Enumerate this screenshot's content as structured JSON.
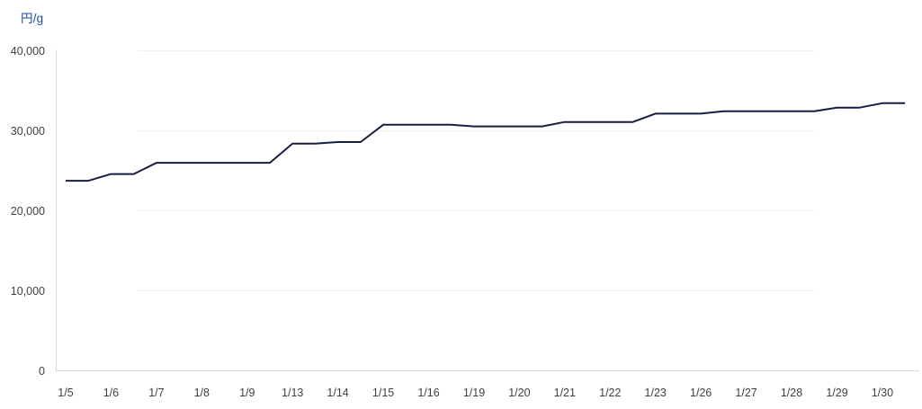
{
  "page": {
    "background": "#ffffff"
  },
  "chart": {
    "unit_label": "円/g",
    "colors": {
      "line": "#171e40",
      "unit_label_text": "#1b4aa2",
      "axis_text": "#404040",
      "axis_line": "#d9d9d9",
      "gridline": "#ededed"
    }
  },
  "chart_data": {
    "type": "line",
    "title": "",
    "xlabel": "",
    "ylabel": "円/g",
    "legend": "none",
    "grid": "horizontal-only",
    "ylim": [
      0,
      40000
    ],
    "ytick_values": [
      0,
      10000,
      20000,
      30000,
      40000
    ],
    "ytick_labels": [
      "0",
      "10,000",
      "20,000",
      "30,000",
      "40,000"
    ],
    "x_labels": [
      "1/5",
      "1/6",
      "1/7",
      "1/8",
      "1/9",
      "1/13",
      "1/14",
      "1/15",
      "1/16",
      "1/19",
      "1/20",
      "1/21",
      "1/22",
      "1/23",
      "1/26",
      "1/27",
      "1/28",
      "1/29",
      "1/30"
    ],
    "points_per_label": 2,
    "values": [
      23750,
      23750,
      24600,
      24600,
      26000,
      26000,
      26000,
      26000,
      26000,
      26000,
      28400,
      28400,
      28600,
      28600,
      30750,
      30750,
      30750,
      30750,
      30550,
      30550,
      30550,
      30550,
      31100,
      31100,
      31100,
      31100,
      32150,
      32150,
      32150,
      32450,
      32450,
      32450,
      32450,
      32450,
      32900,
      32900,
      33450,
      33450
    ],
    "values_by_date": {
      "1/5": 23750,
      "1/6": 24600,
      "1/7": 26000,
      "1/8": 26000,
      "1/9": 26000,
      "1/13": 28400,
      "1/14": 28600,
      "1/15": 30750,
      "1/16": 30750,
      "1/19": 30550,
      "1/20": 30550,
      "1/21": 31100,
      "1/22": 31100,
      "1/23": 32150,
      "1/26": 32150,
      "1/27": 32450,
      "1/28": 32450,
      "1/29": 32900,
      "1/30": 33450
    }
  }
}
